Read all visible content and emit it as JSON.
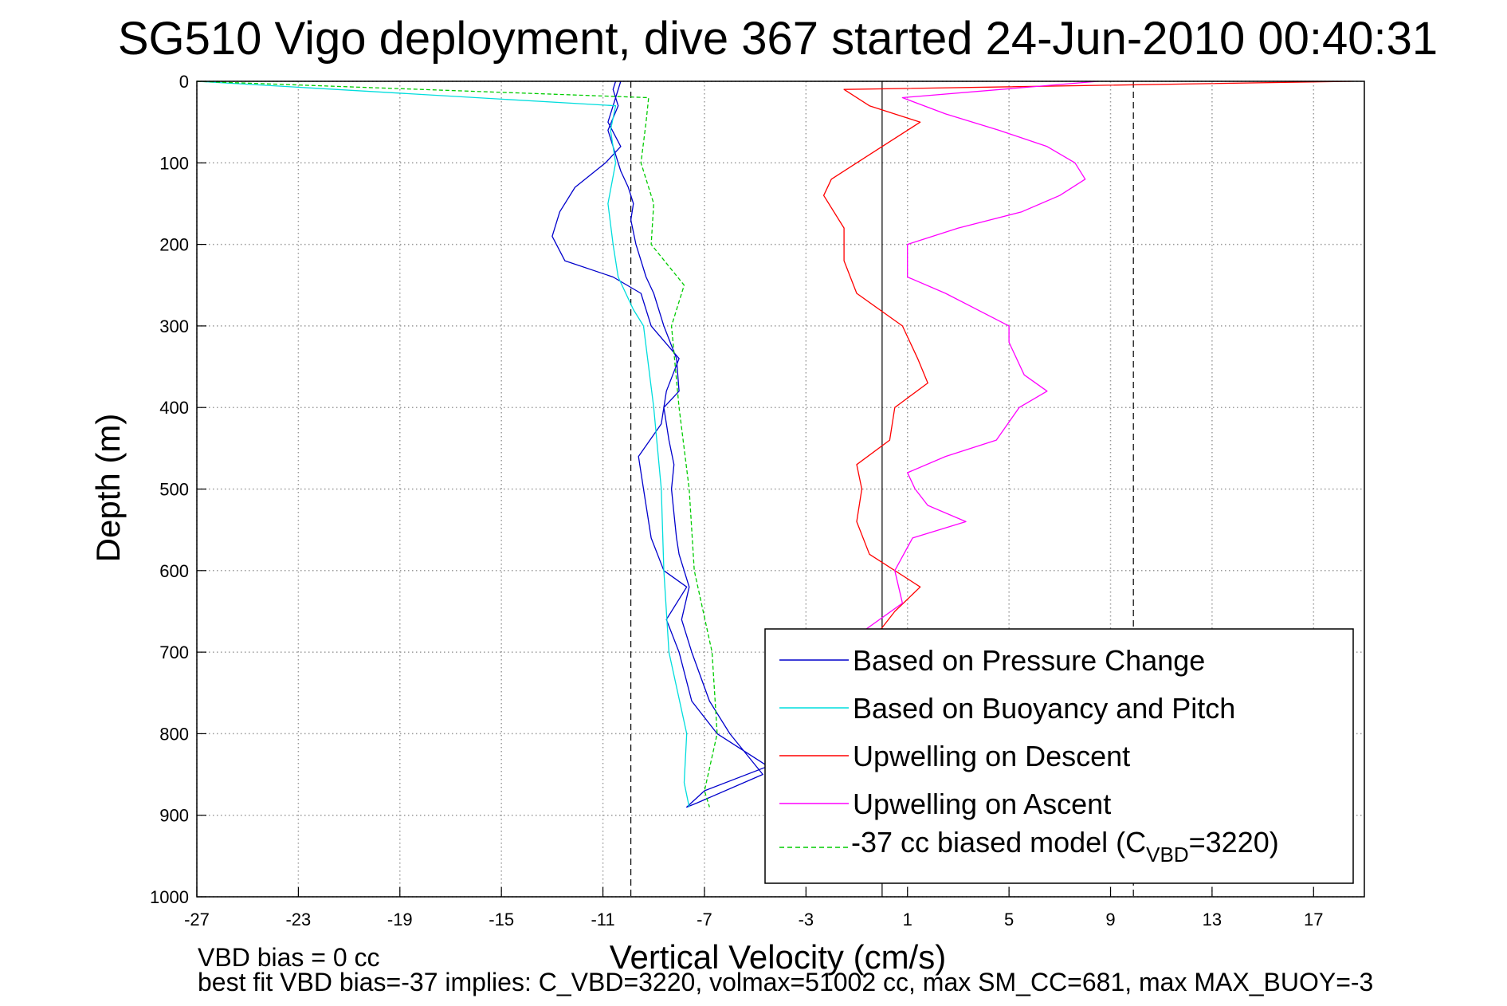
{
  "chart_data": {
    "type": "line",
    "title": "SG510 Vigo deployment, dive 367 started 24-Jun-2010 00:40:31",
    "xlabel": "Vertical Velocity (cm/s)",
    "ylabel": "Depth (m)",
    "xlim": [
      -27,
      19
    ],
    "ylim": [
      0,
      1000
    ],
    "y_reversed": true,
    "xticks": [
      "-27",
      "-23",
      "-19",
      "-15",
      "-11",
      "-7",
      "-3",
      "1",
      "5",
      "9",
      "13",
      "17"
    ],
    "yticks": [
      "0",
      "100",
      "200",
      "300",
      "400",
      "500",
      "600",
      "700",
      "800",
      "900",
      "1000"
    ],
    "grid": true,
    "legend_position": "bottom-right",
    "reference_lines": [
      {
        "x": 0,
        "style": "solid",
        "color": "#000000"
      },
      {
        "x": -9.9,
        "style": "dashed",
        "color": "#000000"
      },
      {
        "x": 9.9,
        "style": "dashed",
        "color": "#000000"
      }
    ],
    "series": [
      {
        "name": "Based on Pressure Change",
        "color": "#0000cc",
        "style": "solid",
        "depth": [
          0,
          20,
          50,
          80,
          100,
          130,
          160,
          190,
          220,
          240,
          260,
          300,
          340,
          380,
          420,
          460,
          500,
          560,
          600,
          620,
          660,
          700,
          760,
          800,
          840,
          870,
          890,
          885,
          850,
          800,
          760,
          700,
          660,
          620,
          580,
          560,
          530,
          500,
          470,
          440,
          400,
          380,
          340,
          300,
          260,
          240,
          200,
          170,
          150,
          130,
          110,
          90,
          60,
          30,
          10,
          0
        ],
        "velocity": [
          -10.3,
          -10.5,
          -10.8,
          -10.3,
          -10.9,
          -12.1,
          -12.7,
          -13.0,
          -12.5,
          -10.6,
          -9.5,
          -9.1,
          -8.0,
          -8.5,
          -8.7,
          -9.6,
          -9.4,
          -9.1,
          -8.6,
          -7.7,
          -8.5,
          -8.0,
          -7.5,
          -6.5,
          -4.5,
          -7.0,
          -7.7,
          -7.3,
          -4.7,
          -6.0,
          -6.8,
          -7.5,
          -7.9,
          -7.6,
          -8.0,
          -8.1,
          -8.2,
          -8.3,
          -8.2,
          -8.4,
          -8.6,
          -8.0,
          -8.1,
          -8.6,
          -9.0,
          -9.3,
          -9.7,
          -9.9,
          -9.8,
          -10.0,
          -10.3,
          -10.5,
          -10.8,
          -10.4,
          -10.6,
          -10.5
        ]
      },
      {
        "name": "Based on Buoyancy and Pitch",
        "color": "#00dddd",
        "style": "solid",
        "depth": [
          0,
          30,
          60,
          100,
          150,
          200,
          240,
          280,
          300,
          400,
          500,
          600,
          700,
          800,
          860,
          890
        ],
        "velocity": [
          -27.0,
          -10.5,
          -10.7,
          -10.5,
          -10.8,
          -10.6,
          -10.4,
          -9.8,
          -9.4,
          -9.0,
          -8.7,
          -8.6,
          -8.4,
          -7.7,
          -7.8,
          -7.6
        ]
      },
      {
        "name": "Upwelling on Descent",
        "color": "#ff0000",
        "style": "solid",
        "depth": [
          0,
          10,
          30,
          50,
          80,
          100,
          120,
          140,
          180,
          220,
          260,
          300,
          340,
          370,
          400,
          440,
          470,
          500,
          540,
          580,
          620,
          650,
          670,
          680
        ],
        "velocity": [
          18.5,
          -1.5,
          -0.5,
          1.5,
          0.0,
          -1.0,
          -2.0,
          -2.3,
          -1.5,
          -1.5,
          -1.0,
          0.8,
          1.4,
          1.8,
          0.5,
          0.3,
          -1.0,
          -0.8,
          -1.0,
          -0.5,
          1.5,
          0.5,
          0.0,
          -0.3
        ]
      },
      {
        "name": "Upwelling on Ascent",
        "color": "#ff00ff",
        "style": "solid",
        "depth": [
          680,
          640,
          600,
          560,
          540,
          520,
          500,
          480,
          460,
          440,
          400,
          380,
          360,
          320,
          300,
          260,
          240,
          220,
          200,
          180,
          160,
          140,
          120,
          100,
          80,
          60,
          40,
          20,
          0
        ],
        "velocity": [
          -1.0,
          0.8,
          0.5,
          1.2,
          3.3,
          1.8,
          1.3,
          1.0,
          2.5,
          4.5,
          5.4,
          6.5,
          5.6,
          5.0,
          5.0,
          2.5,
          1.0,
          1.0,
          1.0,
          3.0,
          5.5,
          7.0,
          8.0,
          7.6,
          6.5,
          4.6,
          2.5,
          0.8,
          8.5
        ]
      },
      {
        "name": "-37 cc biased model (Cₑ=3220)",
        "color": "#00cc00",
        "style": "dashed",
        "depth": [
          0,
          20,
          50,
          100,
          150,
          200,
          250,
          300,
          400,
          500,
          600,
          700,
          800,
          870,
          890
        ],
        "velocity": [
          -27.0,
          -9.2,
          -9.3,
          -9.5,
          -9.0,
          -9.1,
          -7.8,
          -8.3,
          -8.0,
          -7.6,
          -7.4,
          -6.7,
          -6.5,
          -7.0,
          -6.8
        ]
      }
    ],
    "legend": [
      "Based on Pressure Change",
      "Based on Buoyancy and Pitch",
      "Upwelling on Descent",
      "Upwelling on Ascent"
    ],
    "legend_last": {
      "prefix": "-37 cc biased model (C",
      "sub": "VBD",
      "suffix": "=3220)"
    },
    "footnote_line1": "VBD bias = 0 cc",
    "footnote_line2": "best fit VBD bias=-37 implies: C_VBD=3220, volmax=51002 cc, max SM_CC=681, max MAX_BUOY=-3"
  }
}
